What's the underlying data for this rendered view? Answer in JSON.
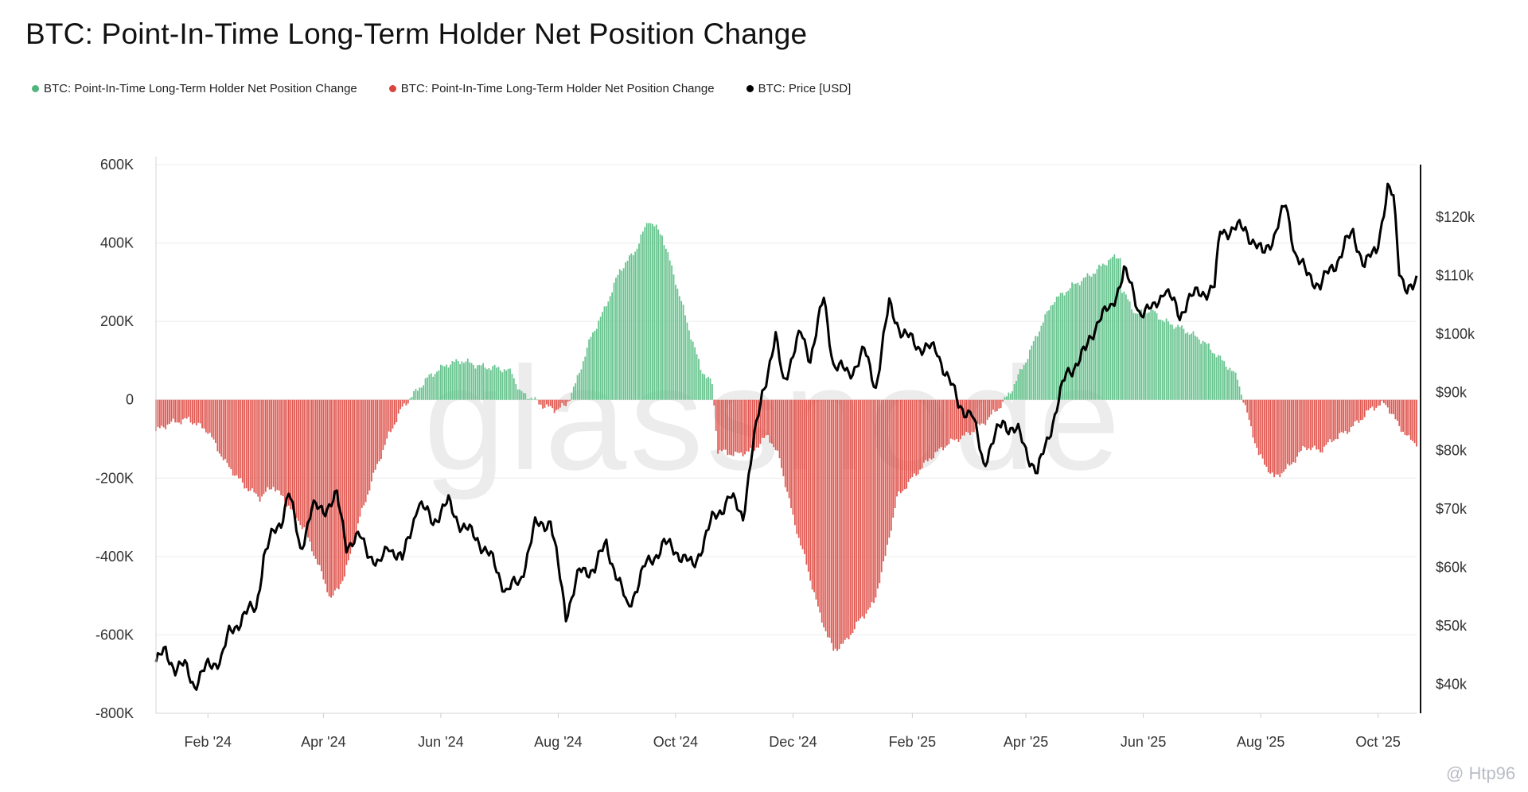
{
  "chart_data": {
    "type": "bar+line",
    "title": "BTC: Point-In-Time Long-Term Holder Net Position Change",
    "legend": [
      {
        "label": "BTC: Point-In-Time Long-Term Holder Net Position Change",
        "color": "#4fb57b"
      },
      {
        "label": "BTC: Point-In-Time Long-Term Holder Net Position Change",
        "color": "#d9453d"
      },
      {
        "label": "BTC: Price [USD]",
        "color": "#000000"
      }
    ],
    "x_ticks": [
      "Feb '24",
      "Apr '24",
      "Jun '24",
      "Aug '24",
      "Oct '24",
      "Dec '24",
      "Feb '25",
      "Apr '25",
      "Jun '25",
      "Aug '25",
      "Oct '25"
    ],
    "x_tick_dates": [
      "2024-02-01",
      "2024-04-01",
      "2024-06-01",
      "2024-08-01",
      "2024-10-01",
      "2024-12-01",
      "2025-02-01",
      "2025-04-01",
      "2025-06-01",
      "2025-08-01",
      "2025-10-01"
    ],
    "x_range": [
      "2024-01-05",
      "2025-10-21"
    ],
    "y_left": {
      "ticks": [
        "600K",
        "400K",
        "200K",
        "0",
        "-200K",
        "-400K",
        "-600K",
        "-800K"
      ],
      "tick_values": [
        600000,
        400000,
        200000,
        0,
        -200000,
        -400000,
        -600000,
        -800000
      ],
      "range": [
        -800000,
        600000
      ]
    },
    "y_right": {
      "ticks": [
        "$120k",
        "$110k",
        "$100k",
        "$90k",
        "$80k",
        "$70k",
        "$60k",
        "$50k",
        "$40k"
      ],
      "tick_values": [
        120000,
        110000,
        100000,
        90000,
        80000,
        70000,
        60000,
        50000,
        40000
      ],
      "range": [
        35000,
        129000
      ]
    },
    "net_position_keypoints": [
      [
        "2024-01-05",
        -80000
      ],
      [
        "2024-01-12",
        -60000
      ],
      [
        "2024-01-22",
        -50000
      ],
      [
        "2024-02-01",
        -80000
      ],
      [
        "2024-02-10",
        -160000
      ],
      [
        "2024-02-20",
        -220000
      ],
      [
        "2024-02-28",
        -250000
      ],
      [
        "2024-03-06",
        -220000
      ],
      [
        "2024-03-14",
        -270000
      ],
      [
        "2024-03-22",
        -330000
      ],
      [
        "2024-03-30",
        -430000
      ],
      [
        "2024-04-05",
        -510000
      ],
      [
        "2024-04-12",
        -450000
      ],
      [
        "2024-04-20",
        -300000
      ],
      [
        "2024-04-28",
        -180000
      ],
      [
        "2024-05-05",
        -90000
      ],
      [
        "2024-05-12",
        -20000
      ],
      [
        "2024-05-18",
        15000
      ],
      [
        "2024-05-26",
        60000
      ],
      [
        "2024-06-04",
        90000
      ],
      [
        "2024-06-12",
        100000
      ],
      [
        "2024-06-22",
        85000
      ],
      [
        "2024-07-02",
        80000
      ],
      [
        "2024-07-08",
        70000
      ],
      [
        "2024-07-12",
        20000
      ],
      [
        "2024-07-18",
        5000
      ],
      [
        "2024-07-24",
        -15000
      ],
      [
        "2024-07-30",
        -25000
      ],
      [
        "2024-08-05",
        -15000
      ],
      [
        "2024-08-10",
        40000
      ],
      [
        "2024-08-18",
        160000
      ],
      [
        "2024-08-25",
        230000
      ],
      [
        "2024-09-02",
        330000
      ],
      [
        "2024-09-10",
        380000
      ],
      [
        "2024-09-17",
        460000
      ],
      [
        "2024-09-24",
        420000
      ],
      [
        "2024-09-30",
        320000
      ],
      [
        "2024-10-08",
        180000
      ],
      [
        "2024-10-14",
        80000
      ],
      [
        "2024-10-20",
        40000
      ],
      [
        "2024-10-23",
        -130000
      ],
      [
        "2024-11-01",
        -140000
      ],
      [
        "2024-11-10",
        -130000
      ],
      [
        "2024-11-18",
        -90000
      ],
      [
        "2024-11-24",
        -150000
      ],
      [
        "2024-12-01",
        -300000
      ],
      [
        "2024-12-08",
        -420000
      ],
      [
        "2024-12-15",
        -550000
      ],
      [
        "2024-12-22",
        -640000
      ],
      [
        "2024-12-28",
        -620000
      ],
      [
        "2025-01-05",
        -560000
      ],
      [
        "2025-01-12",
        -520000
      ],
      [
        "2025-01-18",
        -400000
      ],
      [
        "2025-01-24",
        -250000
      ],
      [
        "2025-02-01",
        -200000
      ],
      [
        "2025-02-10",
        -150000
      ],
      [
        "2025-02-20",
        -110000
      ],
      [
        "2025-03-01",
        -90000
      ],
      [
        "2025-03-10",
        -60000
      ],
      [
        "2025-03-18",
        -20000
      ],
      [
        "2025-03-24",
        20000
      ],
      [
        "2025-04-01",
        100000
      ],
      [
        "2025-04-08",
        180000
      ],
      [
        "2025-04-15",
        250000
      ],
      [
        "2025-04-25",
        290000
      ],
      [
        "2025-05-05",
        320000
      ],
      [
        "2025-05-15",
        360000
      ],
      [
        "2025-05-20",
        365000
      ],
      [
        "2025-05-21",
        280000
      ],
      [
        "2025-05-28",
        220000
      ],
      [
        "2025-06-05",
        230000
      ],
      [
        "2025-06-12",
        200000
      ],
      [
        "2025-06-22",
        180000
      ],
      [
        "2025-07-02",
        150000
      ],
      [
        "2025-07-10",
        110000
      ],
      [
        "2025-07-16",
        80000
      ],
      [
        "2025-07-20",
        55000
      ],
      [
        "2025-07-24",
        -20000
      ],
      [
        "2025-07-31",
        -140000
      ],
      [
        "2025-08-08",
        -200000
      ],
      [
        "2025-08-16",
        -170000
      ],
      [
        "2025-08-24",
        -120000
      ],
      [
        "2025-09-01",
        -130000
      ],
      [
        "2025-09-08",
        -100000
      ],
      [
        "2025-09-15",
        -80000
      ],
      [
        "2025-09-22",
        -50000
      ],
      [
        "2025-09-28",
        -20000
      ],
      [
        "2025-10-05",
        -10000
      ],
      [
        "2025-10-11",
        -60000
      ],
      [
        "2025-10-17",
        -100000
      ],
      [
        "2025-10-21",
        -110000
      ]
    ],
    "price_keypoints": [
      [
        "2024-01-05",
        43800
      ],
      [
        "2024-01-10",
        45500
      ],
      [
        "2024-01-15",
        42800
      ],
      [
        "2024-01-20",
        43000
      ],
      [
        "2024-01-25",
        40000
      ],
      [
        "2024-02-01",
        43000
      ],
      [
        "2024-02-08",
        44500
      ],
      [
        "2024-02-12",
        48500
      ],
      [
        "2024-02-20",
        52000
      ],
      [
        "2024-02-26",
        53000
      ],
      [
        "2024-03-01",
        62000
      ],
      [
        "2024-03-05",
        65000
      ],
      [
        "2024-03-10",
        68000
      ],
      [
        "2024-03-14",
        73000
      ],
      [
        "2024-03-20",
        63000
      ],
      [
        "2024-03-26",
        70000
      ],
      [
        "2024-04-01",
        70000
      ],
      [
        "2024-04-08",
        72000
      ],
      [
        "2024-04-13",
        64000
      ],
      [
        "2024-04-20",
        65000
      ],
      [
        "2024-04-30",
        60000
      ],
      [
        "2024-05-05",
        64000
      ],
      [
        "2024-05-12",
        61000
      ],
      [
        "2024-05-20",
        71000
      ],
      [
        "2024-05-28",
        68000
      ],
      [
        "2024-06-05",
        71000
      ],
      [
        "2024-06-12",
        67000
      ],
      [
        "2024-06-20",
        65000
      ],
      [
        "2024-06-28",
        61000
      ],
      [
        "2024-07-05",
        56000
      ],
      [
        "2024-07-12",
        57500
      ],
      [
        "2024-07-20",
        67000
      ],
      [
        "2024-07-28",
        68000
      ],
      [
        "2024-08-05",
        52000
      ],
      [
        "2024-08-12",
        59000
      ],
      [
        "2024-08-20",
        60000
      ],
      [
        "2024-08-26",
        64000
      ],
      [
        "2024-09-06",
        53000
      ],
      [
        "2024-09-15",
        60000
      ],
      [
        "2024-09-25",
        64000
      ],
      [
        "2024-10-01",
        63000
      ],
      [
        "2024-10-10",
        60000
      ],
      [
        "2024-10-20",
        68000
      ],
      [
        "2024-10-29",
        72000
      ],
      [
        "2024-11-05",
        69000
      ],
      [
        "2024-11-10",
        80000
      ],
      [
        "2024-11-15",
        90000
      ],
      [
        "2024-11-22",
        99000
      ],
      [
        "2024-11-26",
        92000
      ],
      [
        "2024-12-05",
        100000
      ],
      [
        "2024-12-10",
        96000
      ],
      [
        "2024-12-17",
        106000
      ],
      [
        "2024-12-22",
        95000
      ],
      [
        "2024-12-30",
        93000
      ],
      [
        "2025-01-07",
        97000
      ],
      [
        "2025-01-13",
        91000
      ],
      [
        "2025-01-20",
        105000
      ],
      [
        "2025-01-27",
        100000
      ],
      [
        "2025-02-04",
        98000
      ],
      [
        "2025-02-14",
        97000
      ],
      [
        "2025-02-25",
        88000
      ],
      [
        "2025-03-04",
        86000
      ],
      [
        "2025-03-10",
        78000
      ],
      [
        "2025-03-20",
        85000
      ],
      [
        "2025-03-28",
        83000
      ],
      [
        "2025-04-07",
        76000
      ],
      [
        "2025-04-14",
        84000
      ],
      [
        "2025-04-22",
        93000
      ],
      [
        "2025-05-02",
        97000
      ],
      [
        "2025-05-09",
        103000
      ],
      [
        "2025-05-15",
        104000
      ],
      [
        "2025-05-22",
        111000
      ],
      [
        "2025-05-30",
        104000
      ],
      [
        "2025-06-06",
        104000
      ],
      [
        "2025-06-12",
        108000
      ],
      [
        "2025-06-20",
        103000
      ],
      [
        "2025-06-24",
        106000
      ],
      [
        "2025-07-01",
        107000
      ],
      [
        "2025-07-08",
        108000
      ],
      [
        "2025-07-11",
        117500
      ],
      [
        "2025-07-18",
        118000
      ],
      [
        "2025-07-24",
        118000
      ],
      [
        "2025-08-02",
        113500
      ],
      [
        "2025-08-08",
        117000
      ],
      [
        "2025-08-14",
        122000
      ],
      [
        "2025-08-19",
        114000
      ],
      [
        "2025-08-25",
        110000
      ],
      [
        "2025-09-01",
        108500
      ],
      [
        "2025-09-08",
        111500
      ],
      [
        "2025-09-14",
        115500
      ],
      [
        "2025-09-18",
        117000
      ],
      [
        "2025-09-24",
        112000
      ],
      [
        "2025-09-30",
        114000
      ],
      [
        "2025-10-06",
        125000
      ],
      [
        "2025-10-09",
        123000
      ],
      [
        "2025-10-12",
        111000
      ],
      [
        "2025-10-16",
        108000
      ],
      [
        "2025-10-19",
        107500
      ],
      [
        "2025-10-21",
        108500
      ]
    ]
  },
  "watermark": {
    "logo_text": "glassnode",
    "handle": "@ Htp96"
  }
}
